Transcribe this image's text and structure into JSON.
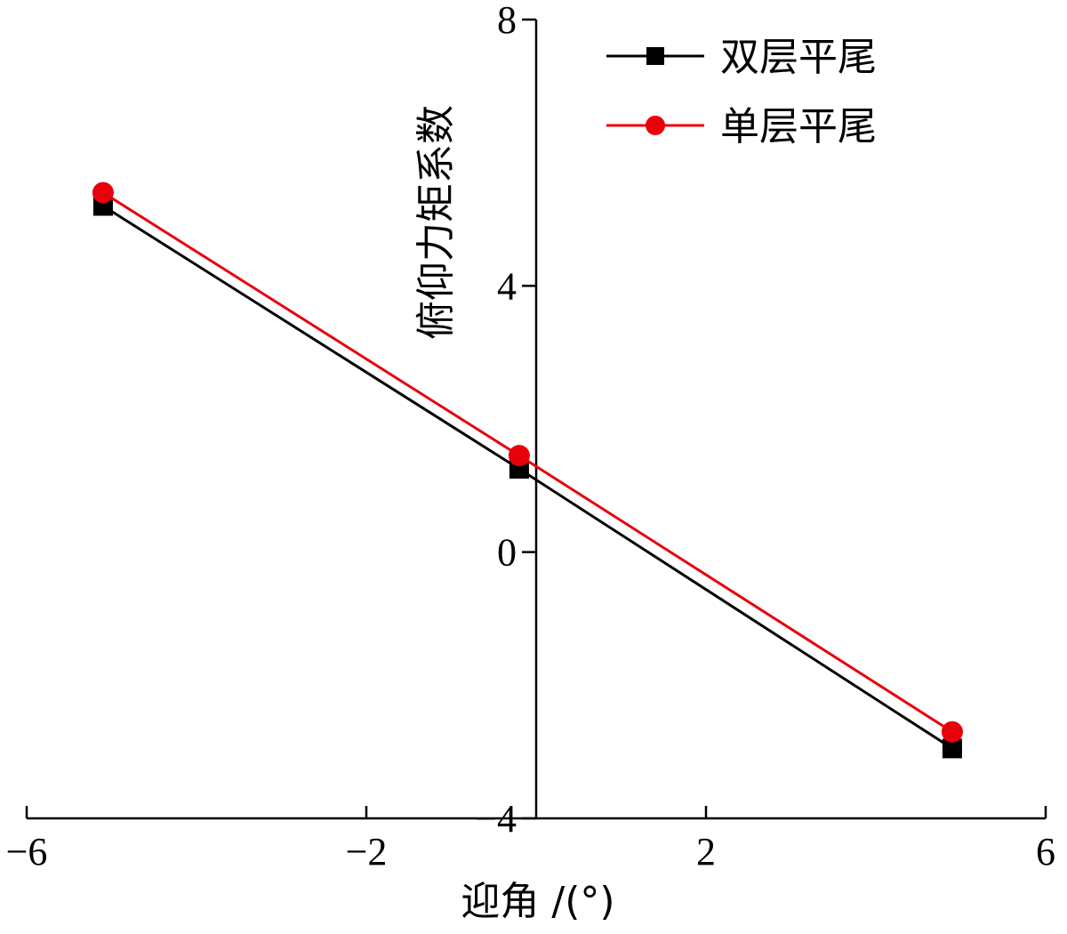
{
  "chart_data": {
    "type": "line",
    "xlabel": "迎角 /(°)",
    "ylabel": "俯仰力矩系数",
    "xlim": [
      -6,
      6
    ],
    "ylim": [
      -4,
      8
    ],
    "xticks": [
      -6,
      -2,
      2,
      6
    ],
    "xtick_labels": [
      "−6",
      "−2",
      "2",
      "6"
    ],
    "yticks": [
      -4,
      0,
      4,
      8
    ],
    "ytick_labels": [
      "−4",
      "0",
      "4",
      "8"
    ],
    "grid": false,
    "legend_position": "top-right",
    "series": [
      {
        "name": "双层平尾",
        "color": "#000000",
        "marker": "square",
        "x": [
          -5.1,
          -0.2,
          4.9
        ],
        "y": [
          5.2,
          1.25,
          -2.95
        ]
      },
      {
        "name": "单层平尾",
        "color": "#e8000b",
        "marker": "circle",
        "x": [
          -5.1,
          -0.2,
          4.9
        ],
        "y": [
          5.4,
          1.45,
          -2.7
        ]
      }
    ]
  }
}
